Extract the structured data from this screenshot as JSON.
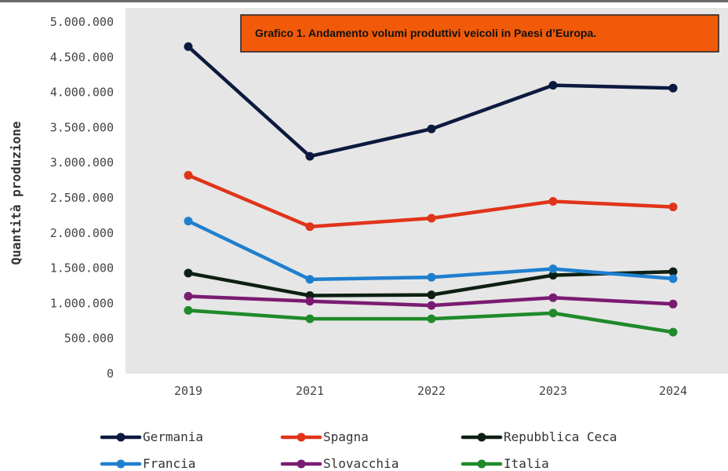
{
  "chart_data": {
    "type": "line",
    "title": "Grafico 1. Andamento volumi produttivi veicoli in Paesi d’Europa.",
    "xlabel": "",
    "ylabel": "Quantità produzione",
    "categories": [
      "2019",
      "2021",
      "2022",
      "2023",
      "2024"
    ],
    "ylim": [
      0,
      5000000
    ],
    "y_ticks": [
      {
        "value": 0,
        "label": "0"
      },
      {
        "value": 500000,
        "label": "500.000"
      },
      {
        "value": 1000000,
        "label": "1.000.000"
      },
      {
        "value": 1500000,
        "label": "1.500.000"
      },
      {
        "value": 2000000,
        "label": "2.000.000"
      },
      {
        "value": 2500000,
        "label": "2.500.000"
      },
      {
        "value": 3000000,
        "label": "3.000.000"
      },
      {
        "value": 3500000,
        "label": "3.500.000"
      },
      {
        "value": 4000000,
        "label": "4.000.000"
      },
      {
        "value": 4500000,
        "label": "4.500.000"
      },
      {
        "value": 5000000,
        "label": "5.000.000"
      }
    ],
    "grid": false,
    "plot_background": "#e6e6e6",
    "title_box_color": "#f15a09",
    "legend_position": "bottom",
    "series": [
      {
        "name": "Germania",
        "color": "#0d1a3f",
        "values": [
          4650000,
          3090000,
          3480000,
          4100000,
          4060000
        ]
      },
      {
        "name": "Spagna",
        "color": "#e0341a",
        "values": [
          2820000,
          2090000,
          2210000,
          2450000,
          2370000
        ]
      },
      {
        "name": "Repubblica Ceca",
        "color": "#0d1f12",
        "values": [
          1430000,
          1110000,
          1120000,
          1400000,
          1450000
        ]
      },
      {
        "name": "Francia",
        "color": "#1f7fcf",
        "values": [
          2170000,
          1340000,
          1370000,
          1490000,
          1350000
        ]
      },
      {
        "name": "Slovacchia",
        "color": "#7a1b72",
        "values": [
          1100000,
          1030000,
          970000,
          1080000,
          990000
        ]
      },
      {
        "name": "Italia",
        "color": "#1f8a2a",
        "values": [
          900000,
          780000,
          780000,
          860000,
          590000
        ]
      }
    ]
  }
}
